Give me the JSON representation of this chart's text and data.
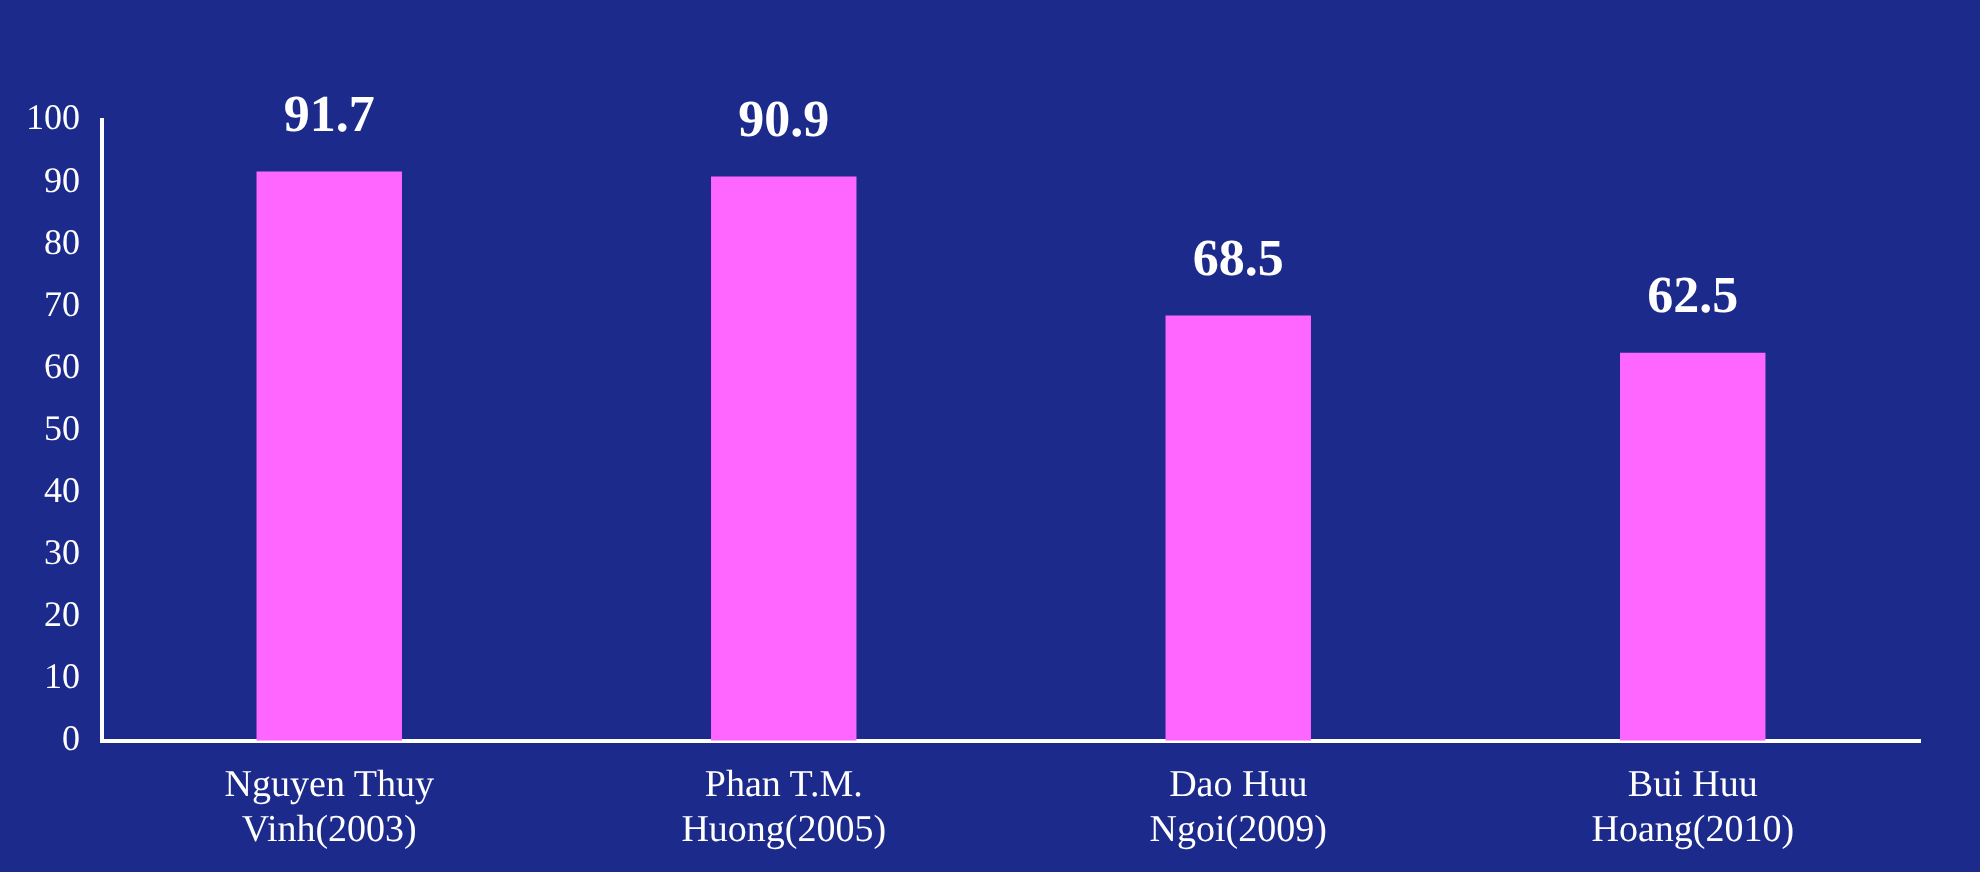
{
  "chart_data": {
    "type": "bar",
    "categories": [
      "Nguyen Thuy Vinh(2003)",
      "Phan T.M. Huong(2005)",
      "Dao Huu Ngoi(2009)",
      "Bui Huu Hoang(2010)"
    ],
    "values": [
      91.7,
      90.9,
      68.5,
      62.5
    ],
    "color": "#ff66ff",
    "ylim": [
      0,
      100
    ],
    "yticks": [
      0,
      10,
      20,
      30,
      40,
      50,
      60,
      70,
      80,
      90,
      100
    ],
    "data_labels": true,
    "grid": false,
    "legend": false
  }
}
